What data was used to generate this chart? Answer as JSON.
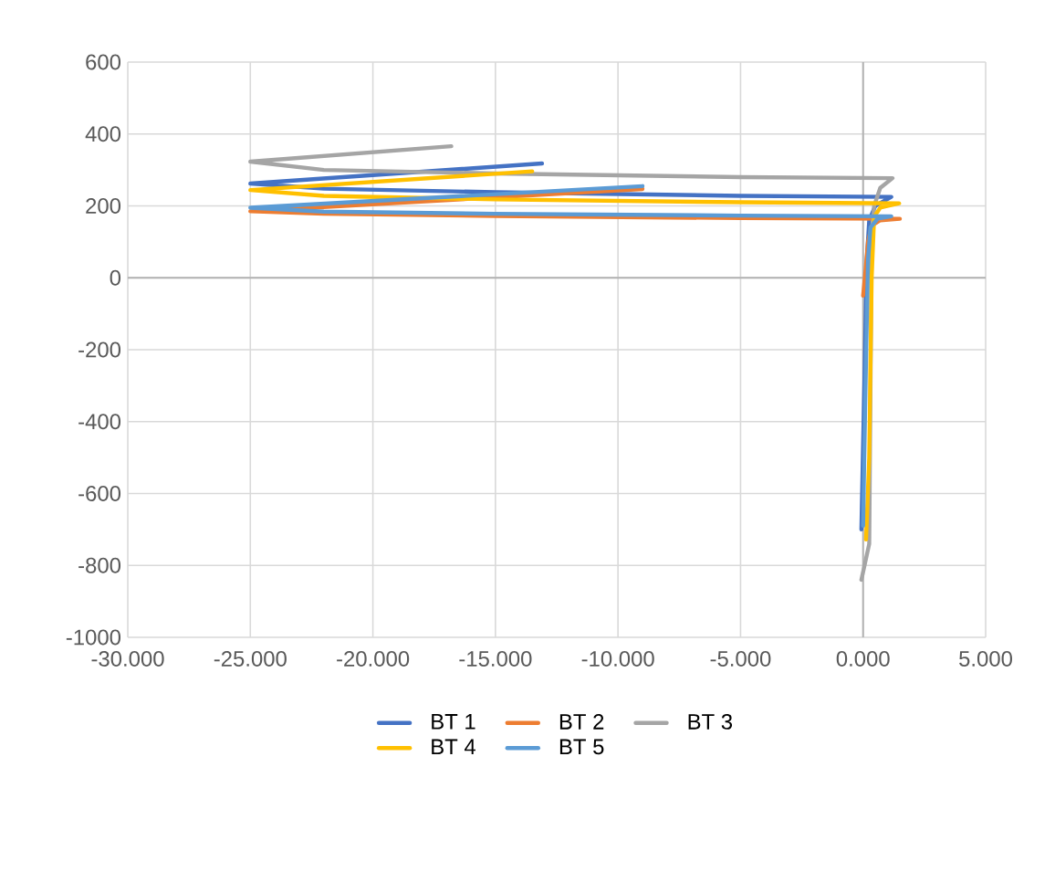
{
  "chart_data": {
    "type": "line",
    "xlim": [
      -30,
      5
    ],
    "ylim": [
      -1000,
      600
    ],
    "xticks": [
      {
        "value": -30,
        "label": "-30.000"
      },
      {
        "value": -25,
        "label": "-25.000"
      },
      {
        "value": -20,
        "label": "-20.000"
      },
      {
        "value": -15,
        "label": "-15.000"
      },
      {
        "value": -10,
        "label": "-10.000"
      },
      {
        "value": -5,
        "label": "-5.000"
      },
      {
        "value": 0,
        "label": "0.000"
      },
      {
        "value": 5,
        "label": "5.000"
      }
    ],
    "yticks": [
      -1000,
      -800,
      -600,
      -400,
      -200,
      0,
      200,
      400,
      600
    ],
    "grid": true,
    "legend": "bottom",
    "marker": "none",
    "line_style": "solid",
    "series": [
      {
        "name": "BT 1",
        "color": "#4472c4",
        "x": [
          -0.07,
          0.05,
          0.15,
          0.25,
          0.5,
          1.15,
          -5,
          -15,
          -22,
          -25,
          -13.1
        ],
        "values": [
          -700,
          -300,
          50,
          160,
          200,
          225,
          228,
          238,
          248,
          262,
          318
        ]
      },
      {
        "name": "BT 2",
        "color": "#ed7d31",
        "x": [
          0.0,
          0.1,
          0.2,
          0.35,
          0.7,
          1.5,
          -5,
          -15,
          -22,
          -25,
          -9.0
        ],
        "values": [
          -50,
          20,
          100,
          145,
          160,
          164,
          166,
          172,
          178,
          185,
          247
        ]
      },
      {
        "name": "BT 3",
        "color": "#a5a5a5",
        "x": [
          -0.07,
          0.25,
          0.35,
          0.45,
          0.7,
          1.2,
          -5,
          -15,
          -22,
          -25,
          -16.8
        ],
        "values": [
          -840,
          -740,
          100,
          200,
          250,
          277,
          280,
          290,
          300,
          323,
          366
        ]
      },
      {
        "name": "BT 4",
        "color": "#ffc000",
        "x": [
          0.12,
          0.25,
          0.35,
          0.45,
          0.7,
          1.47,
          -5,
          -15,
          -22,
          -25,
          -13.5
        ],
        "values": [
          -728,
          -500,
          0,
          170,
          195,
          207,
          210,
          218,
          228,
          244,
          296
        ]
      },
      {
        "name": "BT 5",
        "color": "#5b9bd5",
        "x": [
          0.0,
          0.1,
          0.2,
          0.3,
          0.6,
          1.15,
          -5,
          -15,
          -22,
          -25,
          -9.0
        ],
        "values": [
          -690,
          -300,
          50,
          140,
          165,
          171,
          173,
          178,
          184,
          195,
          255
        ]
      }
    ]
  }
}
